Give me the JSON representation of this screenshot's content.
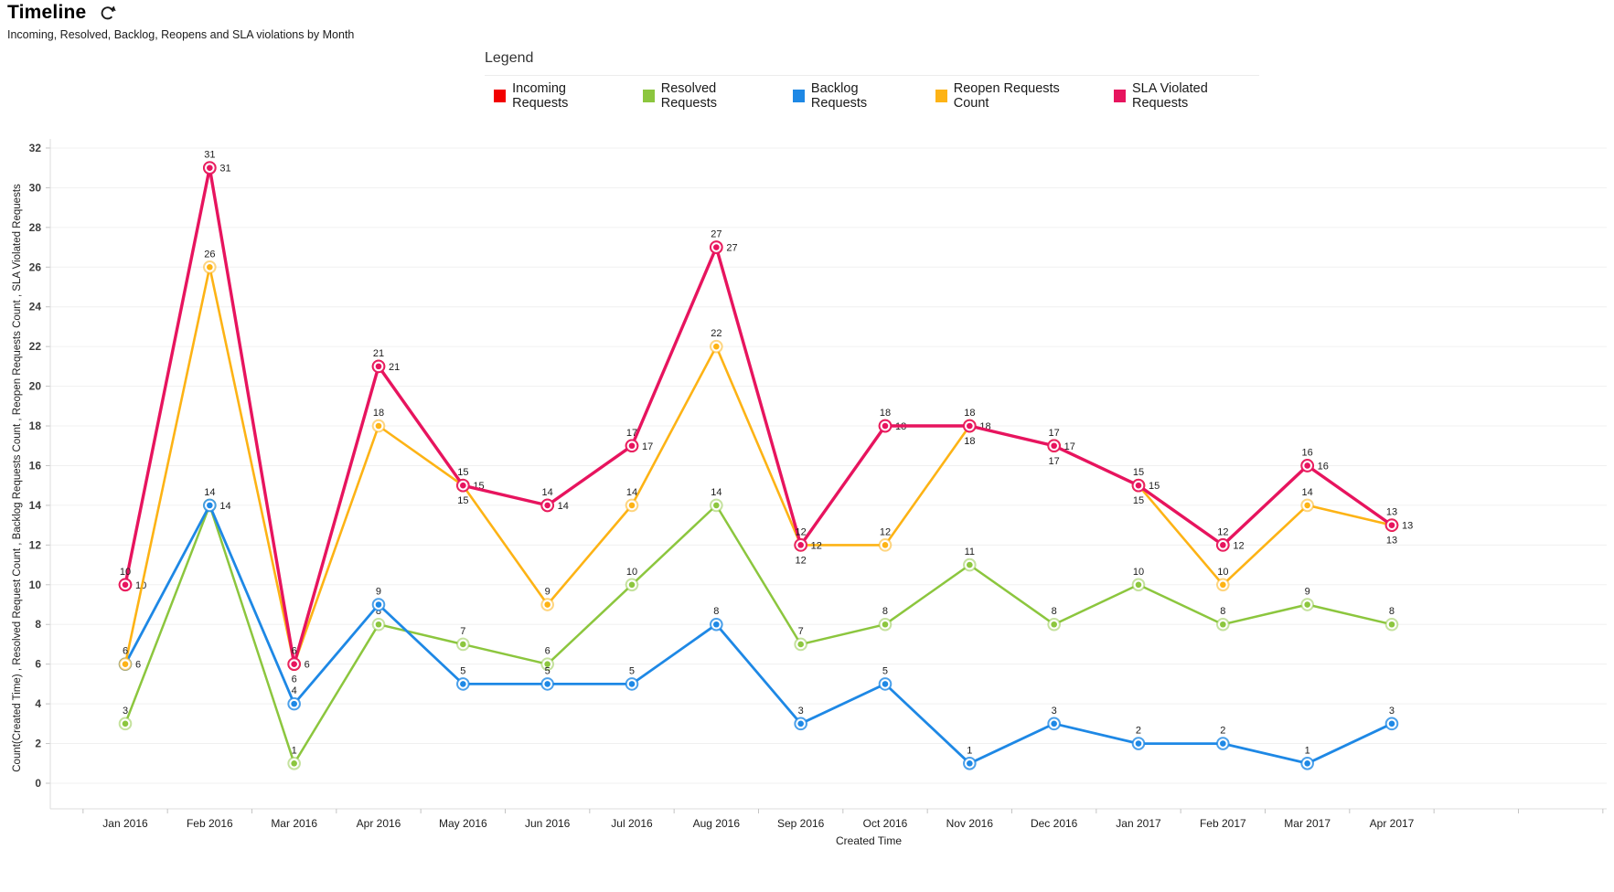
{
  "header": {
    "title": "Timeline",
    "subtitle": "Incoming, Resolved, Backlog, Reopens and SLA violations by Month",
    "refresh_icon": "refresh-circular-arrow"
  },
  "legend": {
    "title": "Legend",
    "items": [
      {
        "label": "Incoming Requests",
        "color": "#f20000"
      },
      {
        "label": "Resolved Requests",
        "color": "#8cc63e"
      },
      {
        "label": "Backlog Requests",
        "color": "#1e88e5"
      },
      {
        "label": "Reopen Requests Count",
        "color": "#fdb315"
      },
      {
        "label": "SLA Violated Requests",
        "color": "#e7145e"
      }
    ]
  },
  "chart_data": {
    "type": "line",
    "title": "Timeline",
    "subtitle": "Incoming, Resolved, Backlog, Reopens and SLA violations by Month",
    "xlabel": "Created Time",
    "ylabel": "Count(Created Time) , Resolved Request Count , Backlog Requests Count , Reopen Requests Count , SLA Violated Requests",
    "ylim": [
      0,
      32
    ],
    "ytick_step": 2,
    "grid": true,
    "legend_position": "top",
    "categories": [
      "Jan 2016",
      "Feb 2016",
      "Mar 2016",
      "Apr 2016",
      "May 2016",
      "Jun 2016",
      "Jul 2016",
      "Aug 2016",
      "Sep 2016",
      "Oct 2016",
      "Nov 2016",
      "Dec 2016",
      "Jan 2017",
      "Feb 2017",
      "Mar 2017",
      "Apr 2017"
    ],
    "series": [
      {
        "name": "Incoming Requests",
        "color": "#f20000",
        "values": [
          10,
          31,
          6,
          21,
          15,
          14,
          17,
          27,
          12,
          18,
          18,
          17,
          15,
          12,
          16,
          13
        ],
        "label_pos": [
          "right",
          "right",
          "below",
          "right",
          "below",
          "right",
          "right",
          "right",
          "below",
          "right",
          "below",
          "below",
          "below",
          "right",
          "right",
          "below"
        ]
      },
      {
        "name": "Resolved Requests",
        "color": "#8cc63e",
        "values": [
          3,
          14,
          1,
          8,
          7,
          6,
          10,
          14,
          7,
          8,
          11,
          8,
          10,
          8,
          9,
          8
        ],
        "label_pos": [
          "above",
          "right",
          "above",
          "above",
          "above",
          "above",
          "above",
          "above",
          "above",
          "above",
          "above",
          "above",
          "above",
          "above",
          "above",
          "above"
        ]
      },
      {
        "name": "Backlog Requests",
        "color": "#1e88e5",
        "values": [
          6,
          14,
          4,
          9,
          5,
          5,
          5,
          8,
          3,
          5,
          1,
          3,
          2,
          2,
          1,
          3
        ],
        "label_pos": [
          "right",
          "above",
          "above",
          "above",
          "above",
          "above",
          "above",
          "above",
          "above",
          "above",
          "above",
          "above",
          "above",
          "above",
          "above",
          "above"
        ]
      },
      {
        "name": "Reopen Requests Count",
        "color": "#fdb315",
        "values": [
          6,
          26,
          6,
          18,
          15,
          9,
          14,
          22,
          12,
          12,
          18,
          17,
          15,
          10,
          14,
          13
        ],
        "label_pos": [
          "above",
          "above",
          "right",
          "above",
          "right",
          "above",
          "above",
          "above",
          "right",
          "above",
          "right",
          "right",
          "right",
          "above",
          "above",
          "right"
        ]
      },
      {
        "name": "SLA Violated Requests",
        "color": "#e7145e",
        "values": [
          10,
          31,
          6,
          21,
          15,
          14,
          17,
          27,
          12,
          18,
          18,
          17,
          15,
          12,
          16,
          13
        ],
        "label_pos": [
          "above",
          "above",
          "above",
          "above",
          "above",
          "above",
          "above",
          "above",
          "above",
          "above",
          "above",
          "above",
          "above",
          "above",
          "above",
          "above"
        ]
      }
    ]
  }
}
